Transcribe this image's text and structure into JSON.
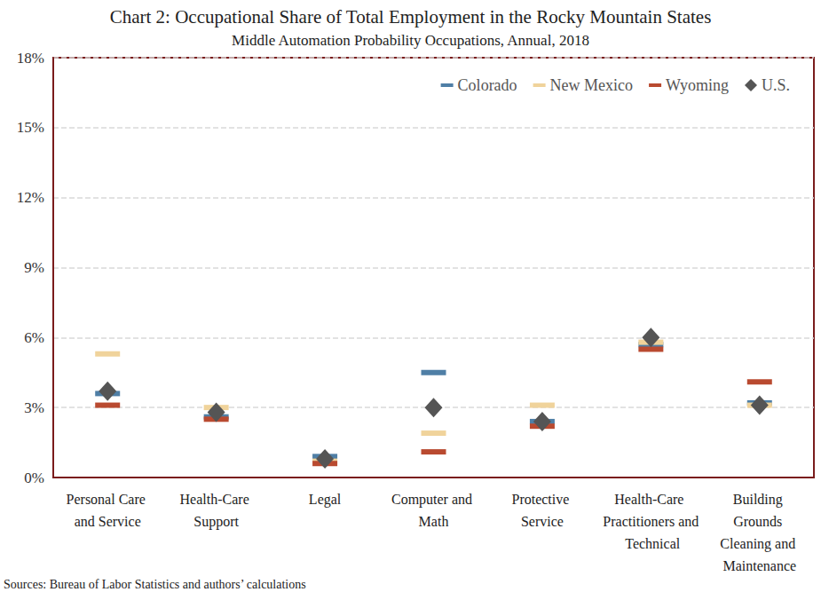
{
  "chart_data": {
    "type": "scatter",
    "title": "Chart 2: Occupational Share of Total Employment in the Rocky Mountain States",
    "subtitle": "Middle Automation Probability Occupations, Annual, 2018",
    "source": "Sources: Bureau of Labor Statistics and authors’ calculations",
    "categories": [
      "Personal Care and Service",
      "Health-Care Support",
      "Legal",
      "Computer and Math",
      "Protective Service",
      "Health-Care Practitioners and Technical",
      "Building Grounds Cleaning and Maintenance"
    ],
    "series": [
      {
        "name": "Colorado",
        "color": "#4f7fa6",
        "marker": "dash",
        "values": [
          3.6,
          2.6,
          0.9,
          4.5,
          2.4,
          5.7,
          3.2
        ]
      },
      {
        "name": "New Mexico",
        "color": "#f0d39b",
        "marker": "dash",
        "values": [
          5.3,
          3.0,
          0.7,
          1.9,
          3.1,
          5.8,
          3.1
        ]
      },
      {
        "name": "Wyoming",
        "color": "#b94a30",
        "marker": "dash",
        "values": [
          3.1,
          2.5,
          0.6,
          1.1,
          2.2,
          5.5,
          4.1
        ]
      },
      {
        "name": "U.S.",
        "color": "#555555",
        "marker": "diamond",
        "values": [
          3.7,
          2.8,
          0.8,
          3.0,
          2.4,
          6.0,
          3.1
        ]
      }
    ],
    "ylim": [
      0,
      18
    ],
    "yticks": [
      {
        "value": 0,
        "label": "0%"
      },
      {
        "value": 3,
        "label": "3%"
      },
      {
        "value": 6,
        "label": "6%"
      },
      {
        "value": 9,
        "label": "9%"
      },
      {
        "value": 12,
        "label": "12%"
      },
      {
        "value": 15,
        "label": "15%"
      },
      {
        "value": 18,
        "label": "18%"
      }
    ],
    "grid": true,
    "legend": "top-right"
  }
}
